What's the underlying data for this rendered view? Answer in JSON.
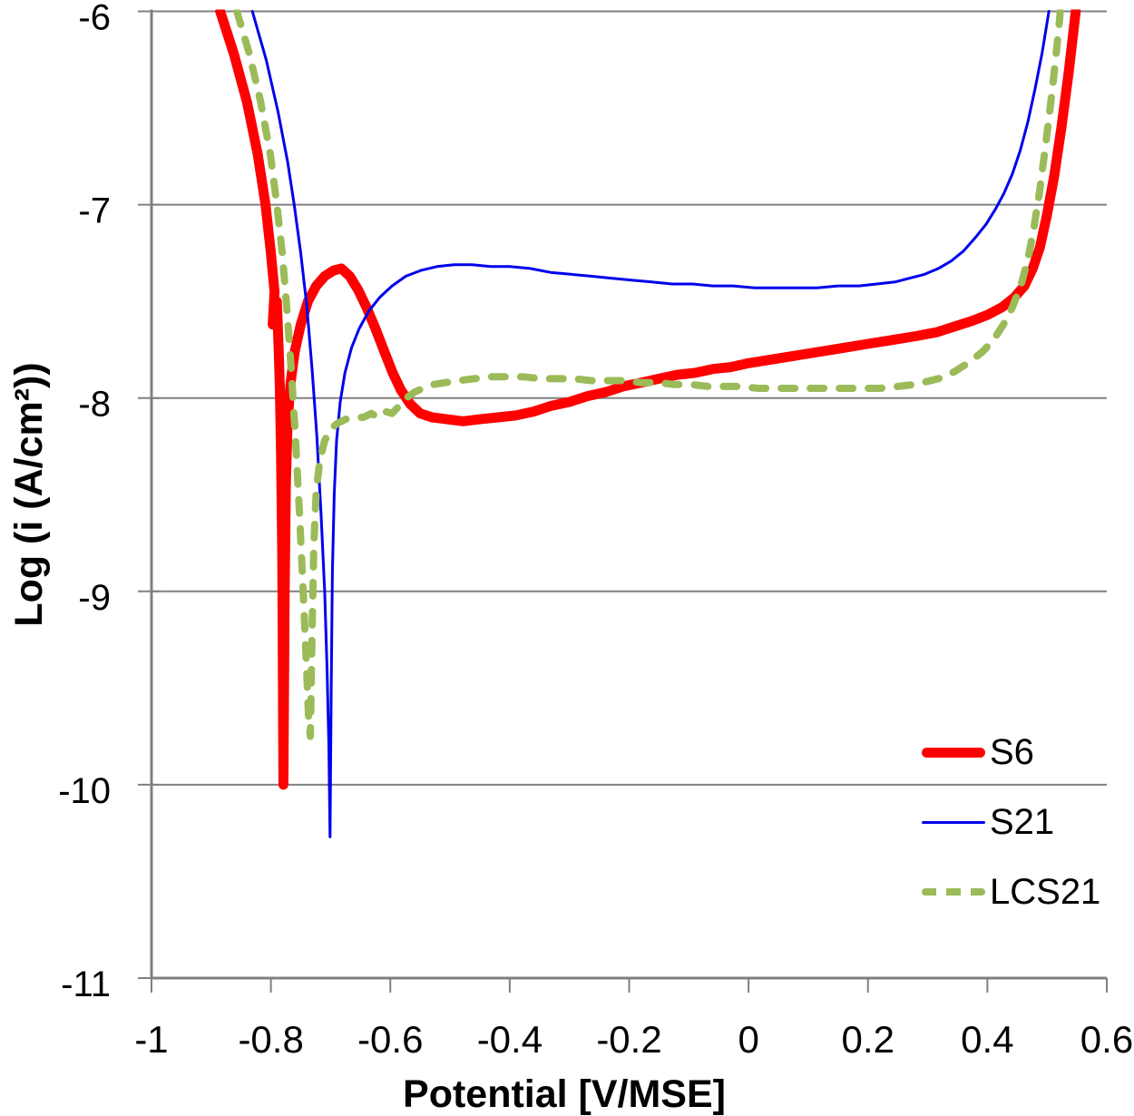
{
  "figure": {
    "description": "Potentiodynamic polarization curves, log current density vs potential",
    "background": "#ffffff"
  },
  "legend": {
    "position": "inside-lower-right",
    "items": [
      {
        "label": "S6"
      },
      {
        "label": "S21"
      },
      {
        "label": "LCS21"
      }
    ]
  },
  "chart_data": {
    "type": "line",
    "title": "",
    "xlabel": "Potential [V/MSE]",
    "ylabel": "Log (i (A/cm²))",
    "xlim": [
      -1,
      0.6
    ],
    "ylim": [
      -11,
      -6
    ],
    "grid": "horizontal-only",
    "legend_position": "inside-lower-right",
    "colors": {
      "grid": "#808080",
      "axis": "#808080",
      "text": "#000000"
    },
    "x_ticks": [
      {
        "v": -1.0,
        "label": "-1"
      },
      {
        "v": -0.8,
        "label": "-0.8"
      },
      {
        "v": -0.6,
        "label": "-0.6"
      },
      {
        "v": -0.4,
        "label": "-0.4"
      },
      {
        "v": -0.2,
        "label": "-0.2"
      },
      {
        "v": 0.0,
        "label": "0"
      },
      {
        "v": 0.2,
        "label": "0.2"
      },
      {
        "v": 0.4,
        "label": "0.4"
      },
      {
        "v": 0.6,
        "label": "0.6"
      }
    ],
    "y_ticks": [
      {
        "v": -6,
        "label": "-6"
      },
      {
        "v": -7,
        "label": "-7"
      },
      {
        "v": -8,
        "label": "-8"
      },
      {
        "v": -9,
        "label": "-9"
      },
      {
        "v": -10,
        "label": "-10"
      },
      {
        "v": -11,
        "label": "-11"
      }
    ],
    "series": [
      {
        "name": "S6",
        "color": "#fe0000",
        "line_style": "solid",
        "line_width": 11,
        "ecorr_spike": {
          "potential": -0.78,
          "min_log_i": -10.0
        },
        "points": [
          [
            -0.885,
            -6.0
          ],
          [
            -0.862,
            -6.22
          ],
          [
            -0.84,
            -6.47
          ],
          [
            -0.822,
            -6.74
          ],
          [
            -0.809,
            -7.0
          ],
          [
            -0.8,
            -7.25
          ],
          [
            -0.794,
            -7.45
          ],
          [
            -0.797,
            -7.62
          ],
          [
            -0.79,
            -7.5
          ],
          [
            -0.787,
            -7.75
          ],
          [
            -0.785,
            -7.95
          ],
          [
            -0.783,
            -8.3
          ],
          [
            -0.781,
            -8.8
          ],
          [
            -0.78,
            -9.4
          ],
          [
            -0.779,
            -10.0
          ],
          [
            -0.777,
            -9.0
          ],
          [
            -0.775,
            -8.45
          ],
          [
            -0.772,
            -8.12
          ],
          [
            -0.767,
            -7.92
          ],
          [
            -0.76,
            -7.76
          ],
          [
            -0.75,
            -7.62
          ],
          [
            -0.738,
            -7.5
          ],
          [
            -0.724,
            -7.42
          ],
          [
            -0.71,
            -7.37
          ],
          [
            -0.695,
            -7.34
          ],
          [
            -0.682,
            -7.33
          ],
          [
            -0.668,
            -7.37
          ],
          [
            -0.654,
            -7.44
          ],
          [
            -0.64,
            -7.53
          ],
          [
            -0.625,
            -7.64
          ],
          [
            -0.61,
            -7.76
          ],
          [
            -0.596,
            -7.87
          ],
          [
            -0.582,
            -7.96
          ],
          [
            -0.567,
            -8.03
          ],
          [
            -0.55,
            -8.08
          ],
          [
            -0.53,
            -8.1
          ],
          [
            -0.505,
            -8.11
          ],
          [
            -0.478,
            -8.12
          ],
          [
            -0.45,
            -8.11
          ],
          [
            -0.42,
            -8.1
          ],
          [
            -0.39,
            -8.09
          ],
          [
            -0.36,
            -8.07
          ],
          [
            -0.33,
            -8.04
          ],
          [
            -0.3,
            -8.02
          ],
          [
            -0.27,
            -7.99
          ],
          [
            -0.24,
            -7.97
          ],
          [
            -0.21,
            -7.94
          ],
          [
            -0.18,
            -7.92
          ],
          [
            -0.15,
            -7.9
          ],
          [
            -0.12,
            -7.88
          ],
          [
            -0.09,
            -7.87
          ],
          [
            -0.06,
            -7.85
          ],
          [
            -0.03,
            -7.84
          ],
          [
            0.0,
            -7.82
          ],
          [
            0.04,
            -7.8
          ],
          [
            0.08,
            -7.78
          ],
          [
            0.12,
            -7.76
          ],
          [
            0.16,
            -7.74
          ],
          [
            0.2,
            -7.72
          ],
          [
            0.24,
            -7.7
          ],
          [
            0.28,
            -7.68
          ],
          [
            0.315,
            -7.66
          ],
          [
            0.345,
            -7.63
          ],
          [
            0.375,
            -7.6
          ],
          [
            0.4,
            -7.57
          ],
          [
            0.425,
            -7.53
          ],
          [
            0.445,
            -7.48
          ],
          [
            0.462,
            -7.42
          ],
          [
            0.476,
            -7.33
          ],
          [
            0.488,
            -7.22
          ],
          [
            0.5,
            -7.05
          ],
          [
            0.512,
            -6.85
          ],
          [
            0.524,
            -6.6
          ],
          [
            0.536,
            -6.32
          ],
          [
            0.548,
            -6.0
          ]
        ]
      },
      {
        "name": "S21",
        "color": "#0000ee",
        "line_style": "solid",
        "line_width": 3,
        "ecorr_spike": {
          "potential": -0.7,
          "min_log_i": -10.27
        },
        "points": [
          [
            -0.831,
            -6.0
          ],
          [
            -0.808,
            -6.25
          ],
          [
            -0.788,
            -6.52
          ],
          [
            -0.772,
            -6.78
          ],
          [
            -0.761,
            -7.0
          ],
          [
            -0.75,
            -7.25
          ],
          [
            -0.74,
            -7.52
          ],
          [
            -0.731,
            -7.85
          ],
          [
            -0.723,
            -8.2
          ],
          [
            -0.716,
            -8.6
          ],
          [
            -0.71,
            -9.0
          ],
          [
            -0.706,
            -9.4
          ],
          [
            -0.703,
            -9.8
          ],
          [
            -0.701,
            -10.27
          ],
          [
            -0.699,
            -9.5
          ],
          [
            -0.697,
            -8.9
          ],
          [
            -0.694,
            -8.5
          ],
          [
            -0.69,
            -8.22
          ],
          [
            -0.684,
            -8.02
          ],
          [
            -0.676,
            -7.87
          ],
          [
            -0.665,
            -7.74
          ],
          [
            -0.652,
            -7.64
          ],
          [
            -0.636,
            -7.55
          ],
          [
            -0.618,
            -7.48
          ],
          [
            -0.597,
            -7.42
          ],
          [
            -0.574,
            -7.37
          ],
          [
            -0.549,
            -7.34
          ],
          [
            -0.522,
            -7.32
          ],
          [
            -0.493,
            -7.31
          ],
          [
            -0.463,
            -7.31
          ],
          [
            -0.432,
            -7.32
          ],
          [
            -0.4,
            -7.32
          ],
          [
            -0.366,
            -7.33
          ],
          [
            -0.332,
            -7.35
          ],
          [
            -0.298,
            -7.36
          ],
          [
            -0.264,
            -7.37
          ],
          [
            -0.23,
            -7.38
          ],
          [
            -0.196,
            -7.39
          ],
          [
            -0.162,
            -7.4
          ],
          [
            -0.128,
            -7.41
          ],
          [
            -0.094,
            -7.41
          ],
          [
            -0.06,
            -7.42
          ],
          [
            -0.026,
            -7.42
          ],
          [
            0.01,
            -7.43
          ],
          [
            0.045,
            -7.43
          ],
          [
            0.08,
            -7.43
          ],
          [
            0.115,
            -7.43
          ],
          [
            0.15,
            -7.42
          ],
          [
            0.185,
            -7.42
          ],
          [
            0.215,
            -7.41
          ],
          [
            0.245,
            -7.4
          ],
          [
            0.27,
            -7.38
          ],
          [
            0.295,
            -7.36
          ],
          [
            0.318,
            -7.33
          ],
          [
            0.34,
            -7.29
          ],
          [
            0.36,
            -7.24
          ],
          [
            0.38,
            -7.17
          ],
          [
            0.398,
            -7.1
          ],
          [
            0.414,
            -7.02
          ],
          [
            0.428,
            -6.94
          ],
          [
            0.442,
            -6.84
          ],
          [
            0.455,
            -6.72
          ],
          [
            0.468,
            -6.57
          ],
          [
            0.48,
            -6.4
          ],
          [
            0.492,
            -6.21
          ],
          [
            0.503,
            -6.0
          ]
        ]
      },
      {
        "name": "LCS21",
        "color": "#9bbb59",
        "line_style": "dashed",
        "line_width": 8,
        "ecorr_spike": {
          "potential": -0.73,
          "min_log_i": -9.75
        },
        "points": [
          [
            -0.857,
            -6.0
          ],
          [
            -0.836,
            -6.22
          ],
          [
            -0.817,
            -6.47
          ],
          [
            -0.801,
            -6.74
          ],
          [
            -0.79,
            -7.0
          ],
          [
            -0.781,
            -7.25
          ],
          [
            -0.773,
            -7.55
          ],
          [
            -0.766,
            -7.85
          ],
          [
            -0.759,
            -8.2
          ],
          [
            -0.752,
            -8.6
          ],
          [
            -0.746,
            -9.0
          ],
          [
            -0.741,
            -9.35
          ],
          [
            -0.737,
            -9.65
          ],
          [
            -0.734,
            -9.75
          ],
          [
            -0.731,
            -9.2
          ],
          [
            -0.728,
            -8.75
          ],
          [
            -0.724,
            -8.48
          ],
          [
            -0.718,
            -8.32
          ],
          [
            -0.71,
            -8.22
          ],
          [
            -0.7,
            -8.16
          ],
          [
            -0.688,
            -8.13
          ],
          [
            -0.675,
            -8.11
          ],
          [
            -0.66,
            -8.1
          ],
          [
            -0.645,
            -8.1
          ],
          [
            -0.632,
            -8.08
          ],
          [
            -0.62,
            -8.1
          ],
          [
            -0.608,
            -8.07
          ],
          [
            -0.597,
            -8.08
          ],
          [
            -0.585,
            -8.04
          ],
          [
            -0.573,
            -8.0
          ],
          [
            -0.56,
            -7.97
          ],
          [
            -0.545,
            -7.95
          ],
          [
            -0.528,
            -7.93
          ],
          [
            -0.508,
            -7.92
          ],
          [
            -0.485,
            -7.91
          ],
          [
            -0.46,
            -7.9
          ],
          [
            -0.432,
            -7.89
          ],
          [
            -0.404,
            -7.89
          ],
          [
            -0.376,
            -7.89
          ],
          [
            -0.348,
            -7.9
          ],
          [
            -0.32,
            -7.9
          ],
          [
            -0.292,
            -7.9
          ],
          [
            -0.264,
            -7.91
          ],
          [
            -0.236,
            -7.91
          ],
          [
            -0.208,
            -7.91
          ],
          [
            -0.18,
            -7.92
          ],
          [
            -0.152,
            -7.92
          ],
          [
            -0.124,
            -7.93
          ],
          [
            -0.096,
            -7.93
          ],
          [
            -0.068,
            -7.94
          ],
          [
            -0.04,
            -7.94
          ],
          [
            -0.012,
            -7.94
          ],
          [
            0.016,
            -7.95
          ],
          [
            0.044,
            -7.95
          ],
          [
            0.072,
            -7.95
          ],
          [
            0.1,
            -7.95
          ],
          [
            0.13,
            -7.95
          ],
          [
            0.16,
            -7.95
          ],
          [
            0.19,
            -7.95
          ],
          [
            0.22,
            -7.95
          ],
          [
            0.25,
            -7.94
          ],
          [
            0.278,
            -7.93
          ],
          [
            0.305,
            -7.91
          ],
          [
            0.33,
            -7.89
          ],
          [
            0.352,
            -7.85
          ],
          [
            0.372,
            -7.81
          ],
          [
            0.392,
            -7.76
          ],
          [
            0.41,
            -7.7
          ],
          [
            0.427,
            -7.62
          ],
          [
            0.442,
            -7.53
          ],
          [
            0.456,
            -7.42
          ],
          [
            0.468,
            -7.28
          ],
          [
            0.478,
            -7.12
          ],
          [
            0.488,
            -6.92
          ],
          [
            0.498,
            -6.68
          ],
          [
            0.509,
            -6.4
          ],
          [
            0.52,
            -6.08
          ],
          [
            0.522,
            -6.0
          ]
        ]
      }
    ]
  }
}
